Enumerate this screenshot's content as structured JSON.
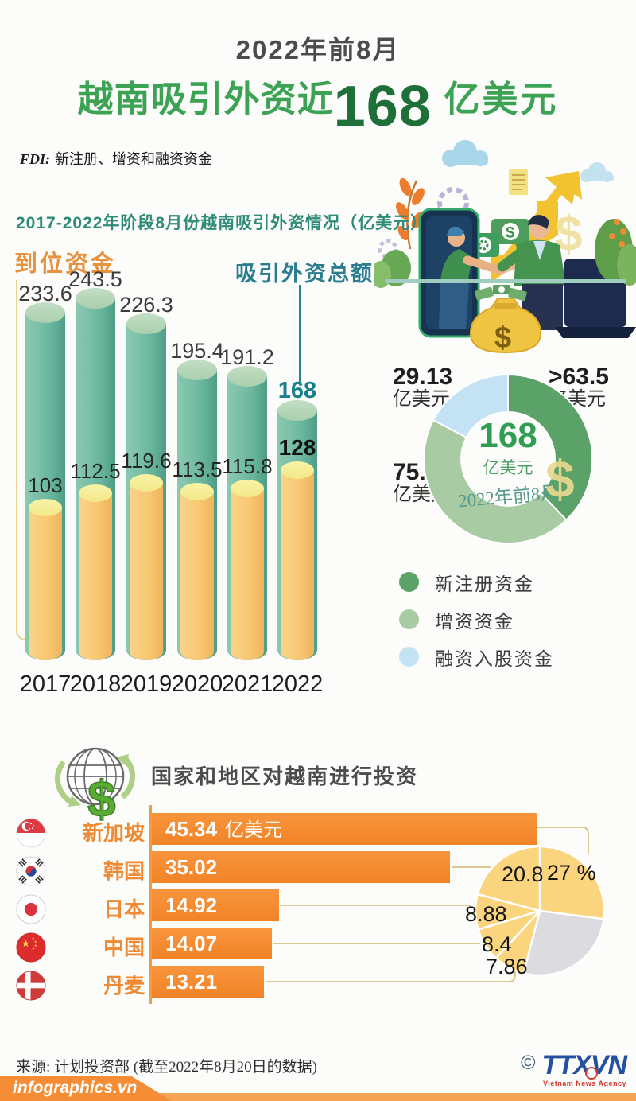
{
  "header": {
    "pretitle": "2022年前8月",
    "title_prefix": "越南吸引外资近",
    "title_number": "168",
    "title_suffix": " 亿美元",
    "fdi_label": "FDI:",
    "fdi_text": "新注册、增资和融资资金"
  },
  "colors": {
    "green_title": "#3ca254",
    "green_dark": "#1e6f38",
    "teal_bar": "#74bca4",
    "yellow_bar": "#f8c873",
    "orange": "#f28327",
    "pie_yellow": "#fbd47e",
    "pie_gray": "#dcdce0",
    "donut_dark_green": "#5aa268",
    "donut_light_green": "#a8cba4",
    "donut_blue": "#c3e3f5"
  },
  "chart_data": [
    {
      "type": "bar",
      "title": "2017-2022年阶段8月份越南吸引外资情况（亿美元）",
      "categories": [
        "2017",
        "2018",
        "2019",
        "2020",
        "2021",
        "2022"
      ],
      "series": [
        {
          "name": "吸引外资总额",
          "values": [
            233.6,
            243.5,
            226.3,
            195.4,
            191.2,
            168
          ]
        },
        {
          "name": "到位资金",
          "values": [
            103,
            112.5,
            119.6,
            113.5,
            115.8,
            128
          ]
        }
      ],
      "ylim": [
        0,
        260
      ],
      "grid": false,
      "legend_position": "above"
    },
    {
      "type": "pie",
      "subtype": "donut",
      "center_value": "168",
      "center_unit": "亿美元",
      "center_period": "2022年前8月",
      "slices": [
        {
          "label": ">63.5",
          "unit": "亿美元",
          "value": 63.5,
          "legend": "新注册资金",
          "color": "#5aa268"
        },
        {
          "label": "75.12",
          "unit": "亿美元",
          "value": 75.12,
          "legend": "增资资金",
          "color": "#a8cba4"
        },
        {
          "label": "29.13",
          "unit": "亿美元",
          "value": 29.13,
          "legend": "融资入股资金",
          "color": "#c3e3f5"
        }
      ]
    },
    {
      "type": "bar",
      "subtype": "horizontal",
      "title": "国家和地区对越南进行投资",
      "categories": [
        "新加坡",
        "韩国",
        "日本",
        "中国",
        "丹麦"
      ],
      "values": [
        45.34,
        35.02,
        14.92,
        14.07,
        13.21
      ],
      "value_labels": [
        "45.34",
        "35.02",
        "14.92",
        "14.07",
        "13.21"
      ],
      "unit_on_first": "亿美元",
      "flags": [
        "sg",
        "kr",
        "jp",
        "cn",
        "dk"
      ]
    },
    {
      "type": "pie",
      "slices": [
        {
          "label": "27 %",
          "value": 27,
          "color": "#fbd47e"
        },
        {
          "label": "",
          "value": 27.06,
          "color": "#dcdce0"
        },
        {
          "label": "7.86",
          "value": 7.86,
          "color": "#fbd47e"
        },
        {
          "label": "8.4",
          "value": 8.4,
          "color": "#fbd47e"
        },
        {
          "label": "8.88",
          "value": 8.88,
          "color": "#fbd47e"
        },
        {
          "label": "20.8",
          "value": 20.8,
          "color": "#fbd47e"
        }
      ]
    }
  ],
  "footer": {
    "source": "来源: 计划投资部 (截至2022年8月20日的数据)",
    "brand": "infographics.vn",
    "copyright": "©",
    "agency": "TTXVN",
    "agency_sub": "Vietnam News Agency"
  }
}
